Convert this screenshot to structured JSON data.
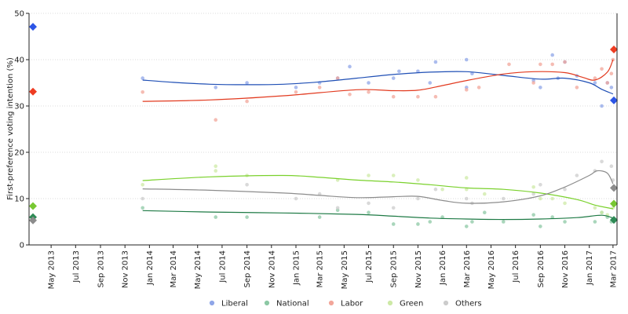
{
  "chart_data": {
    "type": "scatter",
    "title": "",
    "xlabel": "",
    "ylabel": "First-preference voting intention (%)",
    "xlim": [
      "2013-03-07",
      "2017-03-11"
    ],
    "ylim": [
      0,
      50
    ],
    "yticks": [
      0,
      10,
      20,
      30,
      40,
      50
    ],
    "xticks": [
      "May 2013",
      "Jul 2013",
      "Sep 2013",
      "Nov 2013",
      "Jan 2014",
      "Mar 2014",
      "May 2014",
      "Jul 2014",
      "Sep 2014",
      "Nov 2014",
      "Jan 2015",
      "Mar 2015",
      "May 2015",
      "Jul 2015",
      "Sep 2015",
      "Nov 2015",
      "Jan 2016",
      "Mar 2016",
      "May 2016",
      "Jul 2016",
      "Sep 2016",
      "Nov 2016",
      "Jan 2017",
      "Mar 2017"
    ],
    "xtick_dates": [
      "2013-05-01",
      "2013-07-01",
      "2013-09-01",
      "2013-11-01",
      "2014-01-01",
      "2014-03-01",
      "2014-05-01",
      "2014-07-01",
      "2014-09-01",
      "2014-11-01",
      "2015-01-01",
      "2015-03-01",
      "2015-05-01",
      "2015-07-01",
      "2015-09-01",
      "2015-11-01",
      "2016-01-01",
      "2016-03-01",
      "2016-05-01",
      "2016-07-01",
      "2016-09-01",
      "2016-11-01",
      "2017-01-01",
      "2017-03-01"
    ],
    "grid": "horizontal-dotted",
    "legend": "bottom",
    "series": [
      {
        "name": "Liberal",
        "color": "#1f4fb5",
        "point_color": "#8fa6e8",
        "marker_color": "#2c55e6",
        "election_start": 47.1,
        "election_end": 31.2,
        "polls": [
          [
            "2013-12-15",
            36
          ],
          [
            "2014-06-15",
            34
          ],
          [
            "2014-09-01",
            35
          ],
          [
            "2015-01-01",
            34
          ],
          [
            "2015-03-01",
            35
          ],
          [
            "2015-04-15",
            36
          ],
          [
            "2015-05-15",
            38.5
          ],
          [
            "2015-07-01",
            35
          ],
          [
            "2015-09-01",
            36
          ],
          [
            "2015-09-15",
            37.5
          ],
          [
            "2015-11-01",
            37.5
          ],
          [
            "2015-12-01",
            35
          ],
          [
            "2015-12-15",
            39.5
          ],
          [
            "2016-03-01",
            40
          ],
          [
            "2016-03-01",
            34
          ],
          [
            "2016-03-15",
            37
          ],
          [
            "2016-08-15",
            35.5
          ],
          [
            "2016-09-01",
            34
          ],
          [
            "2016-10-01",
            41
          ],
          [
            "2016-10-15",
            36
          ],
          [
            "2016-11-01",
            39.5
          ],
          [
            "2016-12-01",
            36.5
          ],
          [
            "2017-01-15",
            35
          ],
          [
            "2017-02-01",
            30
          ],
          [
            "2017-02-15",
            35
          ],
          [
            "2017-02-25",
            34
          ]
        ],
        "trend": [
          [
            "2013-12-15",
            35.6
          ],
          [
            "2014-03-01",
            35.1
          ],
          [
            "2014-06-01",
            34.7
          ],
          [
            "2014-09-01",
            34.6
          ],
          [
            "2014-12-01",
            34.7
          ],
          [
            "2015-03-01",
            35.2
          ],
          [
            "2015-06-01",
            36.0
          ],
          [
            "2015-09-01",
            36.8
          ],
          [
            "2015-12-01",
            37.3
          ],
          [
            "2016-03-01",
            37.4
          ],
          [
            "2016-06-01",
            36.6
          ],
          [
            "2016-09-01",
            35.8
          ],
          [
            "2016-11-01",
            36.0
          ],
          [
            "2017-01-01",
            35.0
          ],
          [
            "2017-02-01",
            33.6
          ],
          [
            "2017-03-01",
            32.6
          ]
        ]
      },
      {
        "name": "National",
        "color": "#1e7a45",
        "point_color": "#8cc8a4",
        "marker_color": "#2d8a55",
        "election_start": 6.0,
        "election_end": 5.4,
        "polls": [
          [
            "2013-12-15",
            8
          ],
          [
            "2014-06-15",
            6
          ],
          [
            "2014-09-01",
            6
          ],
          [
            "2015-03-01",
            6
          ],
          [
            "2015-04-15",
            7.5
          ],
          [
            "2015-07-01",
            7
          ],
          [
            "2015-09-01",
            4.5
          ],
          [
            "2015-11-01",
            4.5
          ],
          [
            "2015-12-01",
            5
          ],
          [
            "2016-01-01",
            6
          ],
          [
            "2016-03-01",
            4
          ],
          [
            "2016-03-15",
            5
          ],
          [
            "2016-04-15",
            7
          ],
          [
            "2016-06-01",
            5
          ],
          [
            "2016-08-15",
            6.5
          ],
          [
            "2016-09-01",
            4
          ],
          [
            "2016-10-01",
            6
          ],
          [
            "2016-11-01",
            5
          ],
          [
            "2017-01-15",
            5
          ],
          [
            "2017-02-01",
            7
          ],
          [
            "2017-02-15",
            6
          ],
          [
            "2017-02-25",
            5
          ]
        ],
        "trend": [
          [
            "2013-12-15",
            7.4
          ],
          [
            "2014-06-01",
            7.1
          ],
          [
            "2014-12-01",
            6.9
          ],
          [
            "2015-06-01",
            6.6
          ],
          [
            "2015-09-01",
            6.2
          ],
          [
            "2015-12-01",
            5.8
          ],
          [
            "2016-03-01",
            5.6
          ],
          [
            "2016-06-01",
            5.5
          ],
          [
            "2016-09-01",
            5.6
          ],
          [
            "2016-12-01",
            5.9
          ],
          [
            "2017-02-01",
            6.4
          ],
          [
            "2017-03-01",
            5.8
          ]
        ]
      },
      {
        "name": "Labor",
        "color": "#e23a1f",
        "point_color": "#f2a69a",
        "marker_color": "#ee3c22",
        "election_start": 33.1,
        "election_end": 42.2,
        "polls": [
          [
            "2013-12-15",
            33
          ],
          [
            "2014-06-15",
            27
          ],
          [
            "2014-09-01",
            31
          ],
          [
            "2015-01-01",
            33
          ],
          [
            "2015-03-01",
            34
          ],
          [
            "2015-04-15",
            36
          ],
          [
            "2015-05-15",
            32.5
          ],
          [
            "2015-07-01",
            33
          ],
          [
            "2015-09-01",
            32
          ],
          [
            "2015-11-01",
            32
          ],
          [
            "2015-12-15",
            32
          ],
          [
            "2016-03-01",
            33.5
          ],
          [
            "2016-04-01",
            34
          ],
          [
            "2016-06-15",
            39
          ],
          [
            "2016-08-15",
            35
          ],
          [
            "2016-09-01",
            39
          ],
          [
            "2016-10-01",
            39
          ],
          [
            "2016-11-01",
            39.5
          ],
          [
            "2016-12-01",
            34
          ],
          [
            "2017-01-15",
            36
          ],
          [
            "2017-02-01",
            38
          ],
          [
            "2017-02-15",
            35
          ],
          [
            "2017-02-25",
            37
          ],
          [
            "2017-03-01",
            40
          ]
        ],
        "trend": [
          [
            "2013-12-15",
            31.0
          ],
          [
            "2014-06-01",
            31.3
          ],
          [
            "2014-12-01",
            32.2
          ],
          [
            "2015-06-01",
            33.5
          ],
          [
            "2015-09-01",
            33.3
          ],
          [
            "2015-11-01",
            33.4
          ],
          [
            "2016-01-01",
            34.4
          ],
          [
            "2016-03-01",
            35.5
          ],
          [
            "2016-06-01",
            36.9
          ],
          [
            "2016-08-15",
            37.4
          ],
          [
            "2016-11-01",
            37.2
          ],
          [
            "2016-12-15",
            36.2
          ],
          [
            "2017-01-15",
            35.6
          ],
          [
            "2017-02-15",
            37.3
          ],
          [
            "2017-03-01",
            40.0
          ]
        ]
      },
      {
        "name": "Green",
        "color": "#7ad12c",
        "point_color": "#cde9a6",
        "marker_color": "#78c832",
        "election_start": 8.4,
        "election_end": 8.9,
        "polls": [
          [
            "2013-12-15",
            13
          ],
          [
            "2014-06-15",
            16
          ],
          [
            "2014-06-15",
            17
          ],
          [
            "2014-09-01",
            15
          ],
          [
            "2015-04-15",
            14
          ],
          [
            "2015-07-01",
            15
          ],
          [
            "2015-09-01",
            15
          ],
          [
            "2015-11-01",
            14
          ],
          [
            "2016-01-01",
            12
          ],
          [
            "2016-03-01",
            14.5
          ],
          [
            "2016-03-01",
            12
          ],
          [
            "2016-04-15",
            11
          ],
          [
            "2016-08-15",
            12.5
          ],
          [
            "2016-09-01",
            10
          ],
          [
            "2016-10-01",
            10
          ],
          [
            "2016-11-01",
            9
          ],
          [
            "2017-01-15",
            8
          ],
          [
            "2017-02-01",
            7
          ],
          [
            "2017-02-15",
            6.5
          ],
          [
            "2017-03-01",
            8
          ]
        ],
        "trend": [
          [
            "2013-12-15",
            13.9
          ],
          [
            "2014-06-01",
            14.7
          ],
          [
            "2014-12-01",
            15.0
          ],
          [
            "2015-03-01",
            14.6
          ],
          [
            "2015-06-01",
            14.0
          ],
          [
            "2015-09-01",
            13.6
          ],
          [
            "2015-12-01",
            13.0
          ],
          [
            "2016-03-01",
            12.3
          ],
          [
            "2016-06-01",
            12.0
          ],
          [
            "2016-09-01",
            11.2
          ],
          [
            "2016-12-01",
            9.8
          ],
          [
            "2017-01-15",
            8.6
          ],
          [
            "2017-03-01",
            7.8
          ]
        ]
      },
      {
        "name": "Others",
        "color": "#8c8c8c",
        "point_color": "#cccccc",
        "marker_color": "#8c8c8c",
        "election_start": 5.3,
        "election_end": 12.3,
        "polls": [
          [
            "2013-12-15",
            10
          ],
          [
            "2014-09-01",
            13
          ],
          [
            "2015-01-01",
            10
          ],
          [
            "2015-03-01",
            11
          ],
          [
            "2015-04-15",
            8
          ],
          [
            "2015-07-01",
            9
          ],
          [
            "2015-09-01",
            8
          ],
          [
            "2015-11-01",
            10
          ],
          [
            "2015-12-15",
            12
          ],
          [
            "2016-03-01",
            10
          ],
          [
            "2016-03-15",
            9
          ],
          [
            "2016-06-01",
            10
          ],
          [
            "2016-08-15",
            11
          ],
          [
            "2016-09-01",
            13
          ],
          [
            "2016-11-01",
            12
          ],
          [
            "2016-12-01",
            15
          ],
          [
            "2017-01-15",
            16
          ],
          [
            "2017-02-01",
            18
          ],
          [
            "2017-02-25",
            17
          ],
          [
            "2017-03-01",
            14
          ]
        ],
        "trend": [
          [
            "2013-12-15",
            12.1
          ],
          [
            "2014-06-01",
            11.8
          ],
          [
            "2014-12-01",
            11.2
          ],
          [
            "2015-03-01",
            10.7
          ],
          [
            "2015-06-01",
            10.2
          ],
          [
            "2015-09-01",
            10.4
          ],
          [
            "2015-11-01",
            10.5
          ],
          [
            "2016-01-01",
            9.6
          ],
          [
            "2016-03-01",
            9.0
          ],
          [
            "2016-06-01",
            9.3
          ],
          [
            "2016-09-01",
            10.6
          ],
          [
            "2016-11-01",
            12.5
          ],
          [
            "2017-01-01",
            15.0
          ],
          [
            "2017-01-20",
            16.0
          ],
          [
            "2017-02-15",
            15.5
          ],
          [
            "2017-03-01",
            13.2
          ]
        ]
      }
    ]
  }
}
